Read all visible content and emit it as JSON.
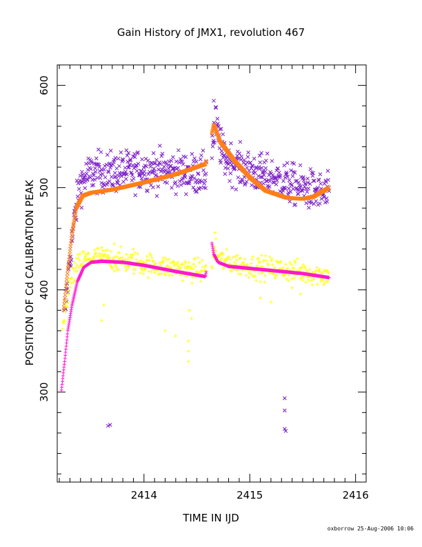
{
  "chart_data": {
    "type": "scatter",
    "title": "Gain History of JMX1, revolution 467",
    "xlabel": "TIME IN IJD",
    "ylabel": "POSITION OF Cd CALIBRATION PEAK",
    "xlim": [
      2413.18,
      2416.1
    ],
    "ylim": [
      212,
      620
    ],
    "xticks": [
      2414,
      2415,
      2416
    ],
    "yticks": [
      300,
      400,
      500,
      600
    ],
    "x_minor_step": 0.1,
    "y_minor_step": 20,
    "grid": false,
    "footer": "oxborrow 25-Aug-2006 10:06",
    "series": [
      {
        "marker": "x",
        "color": "#7b1fc8",
        "noise": 14,
        "outliers": [
          [
            2413.66,
            267
          ],
          [
            2413.68,
            268
          ],
          [
            2415.33,
            294
          ],
          [
            2415.33,
            282
          ],
          [
            2415.33,
            264
          ],
          [
            2415.34,
            262
          ],
          [
            2414.66,
            585
          ],
          [
            2414.68,
            578
          ]
        ],
        "anchors": [
          [
            2413.25,
            370
          ],
          [
            2413.3,
            430
          ],
          [
            2413.35,
            475
          ],
          [
            2413.4,
            505
          ],
          [
            2413.5,
            515
          ],
          [
            2413.7,
            515
          ],
          [
            2414.0,
            518
          ],
          [
            2414.3,
            516
          ],
          [
            2414.58,
            512
          ],
          [
            2414.68,
            560
          ],
          [
            2414.75,
            530
          ],
          [
            2414.9,
            520
          ],
          [
            2415.2,
            510
          ],
          [
            2415.5,
            500
          ],
          [
            2415.75,
            492
          ]
        ]
      },
      {
        "marker": "x",
        "color": "#ff7f1a",
        "anchors": [
          [
            2413.24,
            380
          ],
          [
            2413.28,
            420
          ],
          [
            2413.32,
            455
          ],
          [
            2413.36,
            480
          ],
          [
            2413.42,
            492
          ],
          [
            2413.5,
            495
          ],
          [
            2413.7,
            498
          ],
          [
            2414.0,
            505
          ],
          [
            2414.3,
            513
          ],
          [
            2414.58,
            523
          ],
          [
            2414.66,
            562
          ],
          [
            2414.72,
            545
          ],
          [
            2414.85,
            527
          ],
          [
            2415.0,
            510
          ],
          [
            2415.15,
            497
          ],
          [
            2415.35,
            490
          ],
          [
            2415.5,
            489
          ],
          [
            2415.6,
            491
          ],
          [
            2415.75,
            500
          ]
        ]
      },
      {
        "marker": "+",
        "color": "#ffff1a",
        "noise": 8,
        "outliers": [
          [
            2413.6,
            370
          ],
          [
            2413.62,
            385
          ],
          [
            2413.72,
            445
          ],
          [
            2413.9,
            440
          ],
          [
            2414.2,
            360
          ],
          [
            2414.3,
            355
          ],
          [
            2414.42,
            330
          ],
          [
            2414.42,
            340
          ],
          [
            2414.42,
            350
          ],
          [
            2414.45,
            372
          ],
          [
            2414.43,
            380
          ],
          [
            2414.67,
            456
          ],
          [
            2414.68,
            450
          ],
          [
            2415.1,
            392
          ],
          [
            2415.2,
            388
          ],
          [
            2415.4,
            402
          ],
          [
            2415.48,
            396
          ],
          [
            2415.7,
            405
          ]
        ],
        "anchors": [
          [
            2413.23,
            360
          ],
          [
            2413.28,
            395
          ],
          [
            2413.33,
            415
          ],
          [
            2413.4,
            428
          ],
          [
            2413.55,
            432
          ],
          [
            2413.8,
            428
          ],
          [
            2414.1,
            424
          ],
          [
            2414.4,
            420
          ],
          [
            2414.58,
            418
          ],
          [
            2414.67,
            435
          ],
          [
            2414.75,
            428
          ],
          [
            2415.0,
            423
          ],
          [
            2415.3,
            420
          ],
          [
            2415.6,
            416
          ],
          [
            2415.75,
            415
          ]
        ]
      },
      {
        "marker": "+",
        "color": "#ff1acc",
        "anchors": [
          [
            2413.22,
            302
          ],
          [
            2413.25,
            330
          ],
          [
            2413.28,
            360
          ],
          [
            2413.32,
            385
          ],
          [
            2413.37,
            408
          ],
          [
            2413.43,
            422
          ],
          [
            2413.5,
            427
          ],
          [
            2413.6,
            428
          ],
          [
            2413.8,
            427
          ],
          [
            2414.0,
            424
          ],
          [
            2414.3,
            418
          ],
          [
            2414.58,
            413
          ],
          [
            2414.64,
            447
          ],
          [
            2414.66,
            435
          ],
          [
            2414.7,
            427
          ],
          [
            2414.8,
            423
          ],
          [
            2415.0,
            421
          ],
          [
            2415.3,
            418
          ],
          [
            2415.5,
            416
          ],
          [
            2415.75,
            412
          ]
        ]
      }
    ]
  }
}
